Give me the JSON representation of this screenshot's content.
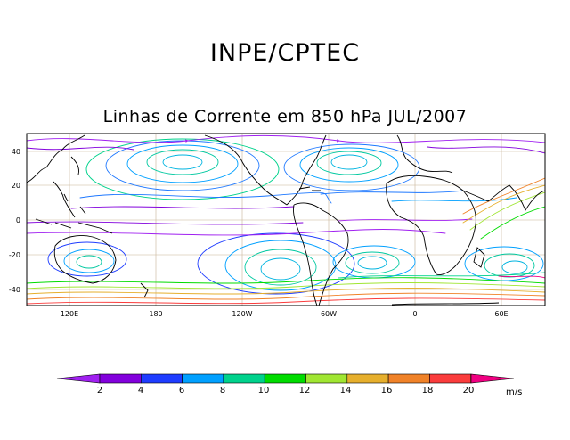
{
  "header": {
    "organization": "INPE/CPTEC",
    "title": "Linhas de Corrente em 850 hPa JUL/2007"
  },
  "map": {
    "lat_labels": [
      "40",
      "20",
      "0",
      "-20",
      "-40"
    ],
    "lon_labels": [
      "120E",
      "180",
      "120W",
      "60W",
      "0",
      "60E"
    ]
  },
  "colorbar": {
    "ticks": [
      "2",
      "4",
      "6",
      "8",
      "10",
      "12",
      "14",
      "16",
      "18",
      "20"
    ],
    "unit": "m/s",
    "colors": [
      "#a020f0",
      "#8200dc",
      "#1e3cff",
      "#00a0ff",
      "#00d28c",
      "#00dc00",
      "#a0e632",
      "#e6af2d",
      "#f08228",
      "#fa3c3c",
      "#f00082"
    ]
  }
}
